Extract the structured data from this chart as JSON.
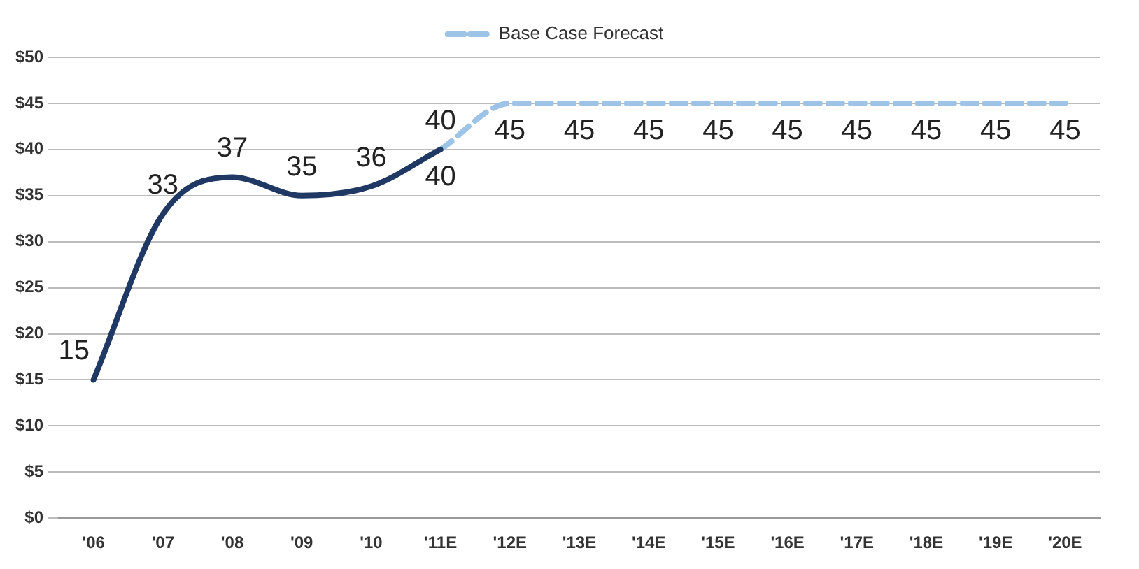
{
  "chart_data": {
    "type": "line",
    "categories": [
      "'06",
      "'07",
      "'08",
      "'09",
      "'10",
      "'11E",
      "'12E",
      "'13E",
      "'14E",
      "'15E",
      "'16E",
      "'17E",
      "'18E",
      "'19E",
      "'20E"
    ],
    "series": [
      {
        "color": "#1f3864",
        "line_style": "solid",
        "values": [
          15,
          33,
          37,
          35,
          36,
          40,
          null,
          null,
          null,
          null,
          null,
          null,
          null,
          null,
          null
        ]
      },
      {
        "name": "Base Case Forecast",
        "color": "#9dc3e6",
        "line_style": "dashed",
        "values": [
          null,
          null,
          null,
          null,
          null,
          40,
          45,
          45,
          45,
          45,
          45,
          45,
          45,
          45,
          45
        ]
      }
    ],
    "ylim": [
      0,
      50
    ],
    "yticks": [
      {
        "value": 0,
        "label": "$0"
      },
      {
        "value": 5,
        "label": "$5"
      },
      {
        "value": 10,
        "label": "$10"
      },
      {
        "value": 15,
        "label": "$15"
      },
      {
        "value": 20,
        "label": "$20"
      },
      {
        "value": 25,
        "label": "$25"
      },
      {
        "value": 30,
        "label": "$30"
      },
      {
        "value": 35,
        "label": "$35"
      },
      {
        "value": 40,
        "label": "$40"
      },
      {
        "value": 45,
        "label": "$45"
      },
      {
        "value": 50,
        "label": "$50"
      }
    ],
    "grid": "y",
    "legend": "top",
    "marker": "none",
    "data_labels": true
  }
}
